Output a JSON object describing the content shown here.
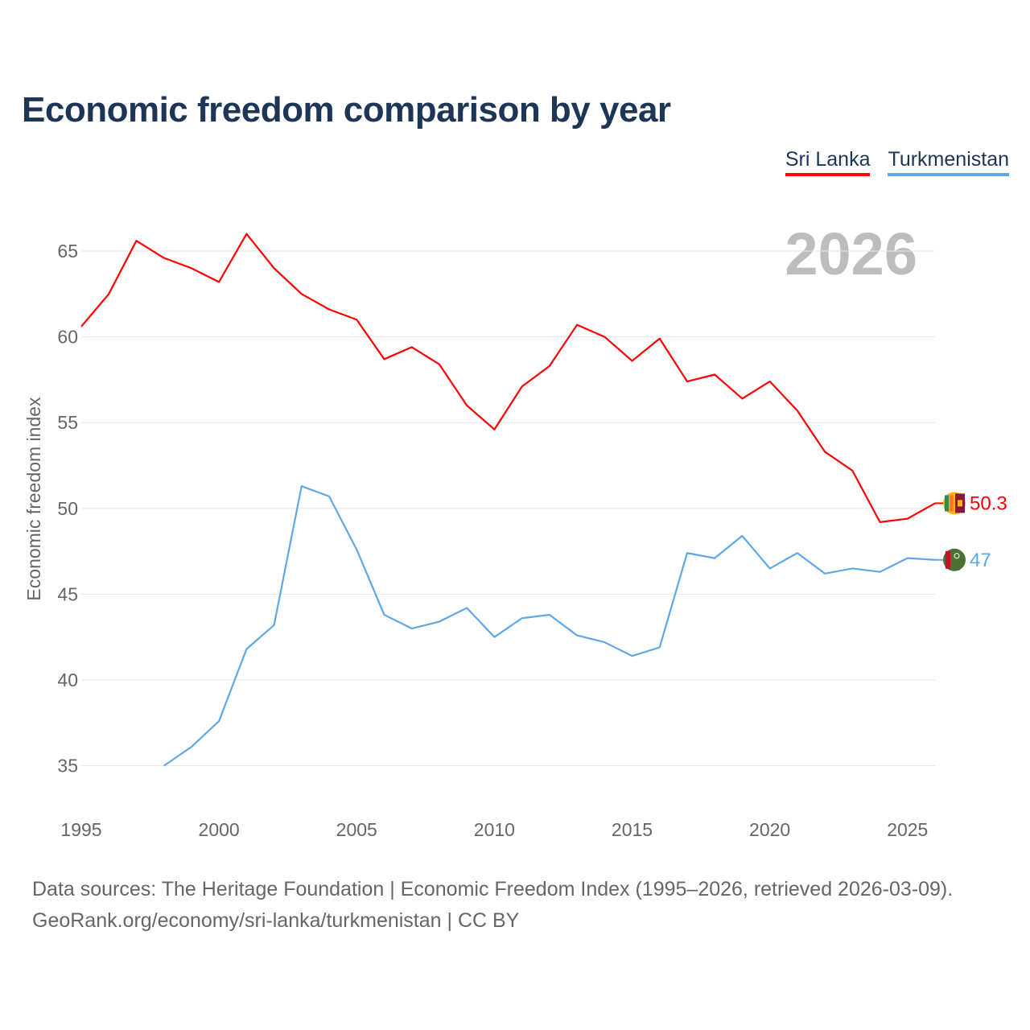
{
  "chart_data": {
    "type": "line",
    "title": "Economic freedom comparison by year",
    "ylabel": "Economic freedom index",
    "xlabel": "",
    "year_label": "2026",
    "xlim": [
      1995,
      2026
    ],
    "ylim": [
      32.5,
      67
    ],
    "x_ticks": [
      1995,
      2000,
      2005,
      2010,
      2015,
      2020,
      2025
    ],
    "y_ticks": [
      35,
      40,
      45,
      50,
      55,
      60,
      65
    ],
    "grid": true,
    "legend_position": "top-right",
    "series": [
      {
        "name": "Sri Lanka",
        "color": "#ff0000",
        "end_label": "50.3",
        "flag_icon": "sri-lanka-flag-icon",
        "x": [
          1995,
          1996,
          1997,
          1998,
          1999,
          2000,
          2001,
          2002,
          2003,
          2004,
          2005,
          2006,
          2007,
          2008,
          2009,
          2010,
          2011,
          2012,
          2013,
          2014,
          2015,
          2016,
          2017,
          2018,
          2019,
          2020,
          2021,
          2022,
          2023,
          2024,
          2025,
          2026
        ],
        "values": [
          60.6,
          62.5,
          65.6,
          64.6,
          64.0,
          63.2,
          66.0,
          64.0,
          62.5,
          61.6,
          61.0,
          58.7,
          59.4,
          58.4,
          56.0,
          54.6,
          57.1,
          58.3,
          60.7,
          60.0,
          58.6,
          59.9,
          57.4,
          57.8,
          56.4,
          57.4,
          55.7,
          53.3,
          52.2,
          49.2,
          49.4,
          50.3
        ]
      },
      {
        "name": "Turkmenistan",
        "color": "#5fa8e8",
        "end_label": "47",
        "flag_icon": "turkmenistan-flag-icon",
        "x": [
          1998,
          1999,
          2000,
          2001,
          2002,
          2003,
          2004,
          2005,
          2006,
          2007,
          2008,
          2009,
          2010,
          2011,
          2012,
          2013,
          2014,
          2015,
          2016,
          2017,
          2018,
          2019,
          2020,
          2021,
          2022,
          2023,
          2024,
          2025,
          2026
        ],
        "values": [
          35.0,
          36.1,
          37.6,
          41.8,
          43.2,
          51.3,
          50.7,
          47.6,
          43.8,
          43.0,
          43.4,
          44.2,
          42.5,
          43.6,
          43.8,
          42.6,
          42.2,
          41.4,
          41.9,
          47.4,
          47.1,
          48.4,
          46.5,
          47.4,
          46.2,
          46.5,
          46.3,
          47.1,
          47.0
        ]
      }
    ]
  },
  "footer": {
    "line1": "Data sources: The Heritage Foundation | Economic Freedom Index (1995–2026, retrieved 2026-03-09).",
    "line2": "GeoRank.org/economy/sri-lanka/turkmenistan | CC BY"
  }
}
